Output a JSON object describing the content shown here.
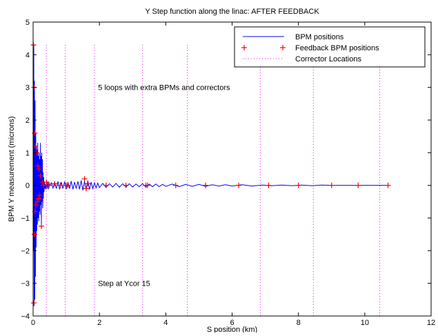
{
  "chart_data": {
    "type": "line",
    "title": "Y Step function along the linac:  AFTER FEEDBACK",
    "xlabel": "S position (km)",
    "ylabel": "BPM Y measurement (microns)",
    "xlim": [
      0,
      12
    ],
    "ylim": [
      -4,
      5
    ],
    "xticks": [
      0,
      2,
      4,
      6,
      8,
      10,
      12
    ],
    "yticks": [
      -4,
      -3,
      -2,
      -1,
      0,
      1,
      2,
      3,
      4,
      5
    ],
    "xtick_labels": [
      "0",
      "2",
      "4",
      "6",
      "8",
      "10",
      "12"
    ],
    "ytick_labels": [
      "−4",
      "−3",
      "−2",
      "−1",
      "0",
      "1",
      "2",
      "3",
      "4",
      "5"
    ],
    "grid": false,
    "legend_position": "top-right",
    "colors": {
      "bpm": "#0000ff",
      "feedback": "#ff0000",
      "corrector": "#ff00ff"
    },
    "series": [
      {
        "name": "BPM positions",
        "style": "solid-line",
        "x": [
          0.0,
          0.01,
          0.02,
          0.03,
          0.04,
          0.05,
          0.06,
          0.07,
          0.08,
          0.09,
          0.1,
          0.11,
          0.12,
          0.13,
          0.14,
          0.15,
          0.16,
          0.17,
          0.18,
          0.19,
          0.2,
          0.21,
          0.22,
          0.23,
          0.24,
          0.25,
          0.26,
          0.27,
          0.28,
          0.29,
          0.3,
          0.31,
          0.32,
          0.33,
          0.34,
          0.35,
          0.36,
          0.38,
          0.4,
          0.42,
          0.44,
          0.46,
          0.48,
          0.5,
          0.55,
          0.6,
          0.65,
          0.7,
          0.75,
          0.8,
          0.85,
          0.9,
          0.95,
          1.0,
          1.05,
          1.1,
          1.15,
          1.2,
          1.25,
          1.3,
          1.35,
          1.4,
          1.45,
          1.5,
          1.55,
          1.6,
          1.65,
          1.7,
          1.75,
          1.8,
          1.85,
          1.9,
          1.95,
          2.0,
          2.1,
          2.2,
          2.3,
          2.4,
          2.5,
          2.6,
          2.7,
          2.8,
          2.9,
          3.0,
          3.1,
          3.2,
          3.3,
          3.4,
          3.5,
          3.6,
          3.7,
          3.8,
          3.9,
          4.0,
          4.2,
          4.4,
          4.6,
          4.8,
          5.0,
          5.2,
          5.4,
          5.6,
          5.8,
          6.0,
          6.3,
          6.6,
          6.9,
          7.2,
          7.5,
          7.8,
          8.1,
          8.4,
          8.7,
          9.0,
          9.5,
          10.0,
          10.5,
          10.7
        ],
        "y": [
          0.5,
          -2.0,
          4.3,
          -3.7,
          3.2,
          -3.5,
          2.6,
          -2.8,
          1.6,
          -1.9,
          1.2,
          -1.4,
          1.1,
          -1.2,
          1.3,
          -1.0,
          0.9,
          -1.1,
          1.0,
          -0.8,
          0.8,
          -0.9,
          1.3,
          -0.6,
          0.9,
          -1.2,
          1.0,
          -0.5,
          0.8,
          -0.7,
          0.4,
          -0.4,
          0.25,
          -0.2,
          0.12,
          -0.1,
          0.05,
          -0.12,
          0.1,
          -0.1,
          0.12,
          -0.12,
          0.1,
          0.0,
          0.08,
          -0.08,
          0.1,
          -0.1,
          0.12,
          -0.12,
          0.1,
          -0.1,
          0.12,
          -0.12,
          0.1,
          -0.1,
          0.13,
          -0.12,
          0.1,
          -0.1,
          0.12,
          -0.12,
          0.15,
          -0.15,
          0.12,
          -0.12,
          0.15,
          -0.13,
          0.1,
          -0.1,
          0.08,
          -0.08,
          0.07,
          -0.07,
          0.06,
          -0.06,
          0.05,
          -0.05,
          0.06,
          -0.06,
          0.05,
          -0.05,
          0.05,
          -0.05,
          0.04,
          -0.04,
          0.05,
          -0.05,
          0.04,
          -0.04,
          0.04,
          -0.04,
          0.03,
          -0.03,
          0.04,
          -0.04,
          0.03,
          -0.03,
          0.03,
          -0.03,
          0.02,
          -0.02,
          0.02,
          -0.02,
          0.02,
          -0.02,
          0.01,
          -0.01,
          0.01,
          -0.01,
          0.01,
          -0.01,
          0.01,
          0.0,
          0.0,
          0.0,
          0.0,
          0.0
        ]
      },
      {
        "name": "Feedback BPM positions",
        "style": "plus-markers",
        "x": [
          0.01,
          0.02,
          0.03,
          0.04,
          0.05,
          0.06,
          0.07,
          0.08,
          0.1,
          0.12,
          0.14,
          0.16,
          0.18,
          0.2,
          0.22,
          0.25,
          0.28,
          0.32,
          0.4,
          0.48,
          0.65,
          0.82,
          1.0,
          1.05,
          1.55,
          1.6,
          1.65,
          2.2,
          2.8,
          3.4,
          3.45,
          4.3,
          5.2,
          6.2,
          7.1,
          8.0,
          9.0,
          9.8,
          10.7
        ],
        "y": [
          4.3,
          -3.6,
          3.0,
          -1.5,
          1.6,
          -0.8,
          1.2,
          -0.6,
          1.0,
          -0.5,
          0.6,
          -0.4,
          0.5,
          -0.3,
          0.3,
          -1.25,
          0.1,
          0.0,
          0.1,
          0.0,
          0.05,
          0.0,
          0.0,
          0.0,
          0.2,
          -0.1,
          0.05,
          0.0,
          0.0,
          0.0,
          0.0,
          0.0,
          0.0,
          0.0,
          0.0,
          0.0,
          0.0,
          0.0,
          0.0
        ]
      },
      {
        "name": "Corrector Locations",
        "style": "dotted-vertical-lines",
        "x": [
          0.4,
          0.97,
          1.85,
          3.3,
          4.65,
          6.85,
          8.45,
          10.45
        ],
        "y_range": [
          -4,
          4.3
        ]
      }
    ],
    "annotations": [
      {
        "text": "5 loops with extra BPMs and correctors",
        "x": 2.0,
        "y": 3.0
      },
      {
        "text": "Step at Ycor 15",
        "x": 2.0,
        "y": -3.0
      }
    ]
  }
}
